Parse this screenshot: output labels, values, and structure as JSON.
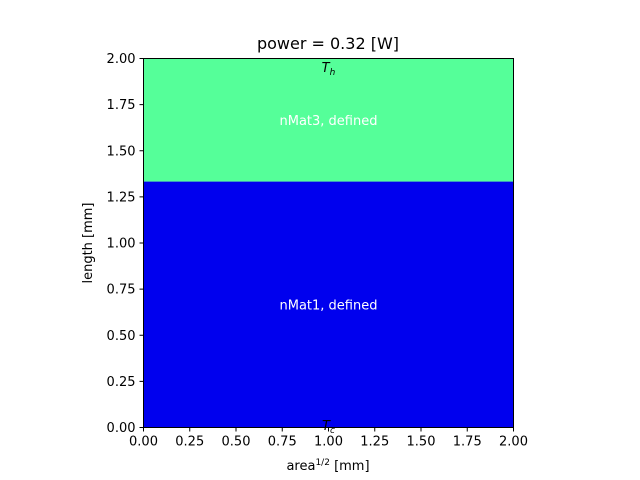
{
  "chart_data": {
    "type": "heatmap",
    "title": "power = 0.32 [W]",
    "xlabel": "area",
    "xlabel_sup": "1/2",
    "xlabel_unit": " [mm]",
    "ylabel": "length [mm]",
    "xlim": [
      0,
      2
    ],
    "ylim": [
      0,
      2
    ],
    "xticks": [
      0.0,
      0.25,
      0.5,
      0.75,
      1.0,
      1.25,
      1.5,
      1.75,
      2.0
    ],
    "yticks": [
      0.0,
      0.25,
      0.5,
      0.75,
      1.0,
      1.25,
      1.5,
      1.75,
      2.0
    ],
    "xtick_labels": [
      "0.00",
      "0.25",
      "0.50",
      "0.75",
      "1.00",
      "1.25",
      "1.50",
      "1.75",
      "2.00"
    ],
    "ytick_labels": [
      "0.00",
      "0.25",
      "0.50",
      "0.75",
      "1.00",
      "1.25",
      "1.50",
      "1.75",
      "2.00"
    ],
    "grid": false,
    "regions": [
      {
        "label": "nMat1, defined",
        "y_from": 0.0,
        "y_to": 1.333,
        "x_from": 0.0,
        "x_to": 2.0,
        "color": "#0000ee"
      },
      {
        "label": "nMat3, defined",
        "y_from": 1.333,
        "y_to": 2.0,
        "x_from": 0.0,
        "x_to": 2.0,
        "color": "#55ff99"
      }
    ],
    "annotations": [
      {
        "id": "hot",
        "symbol": "T",
        "subscript": "h",
        "x": 1.0,
        "y": 1.97
      },
      {
        "id": "cold",
        "symbol": "T",
        "subscript": "c",
        "x": 1.0,
        "y": 0.03
      }
    ]
  }
}
